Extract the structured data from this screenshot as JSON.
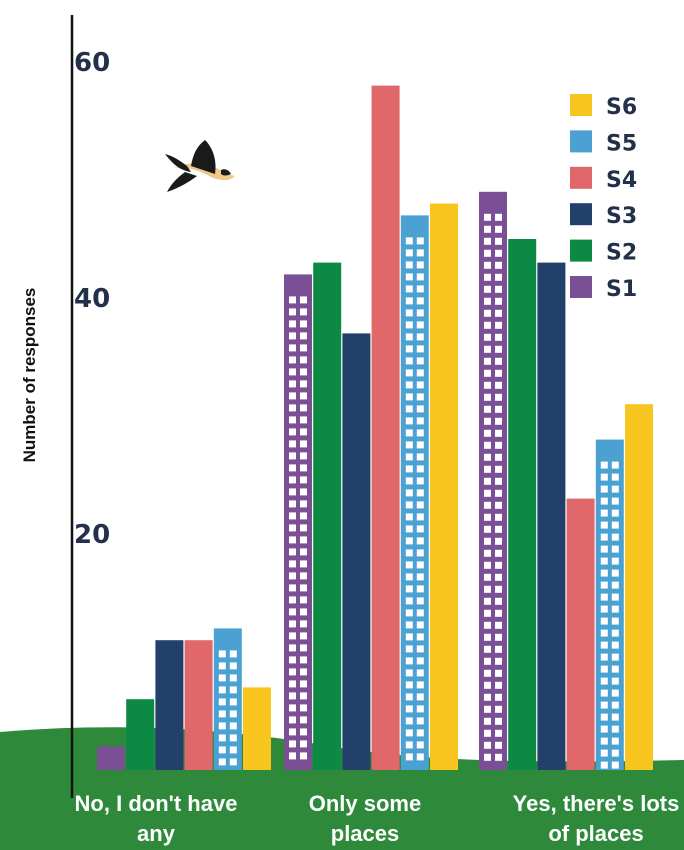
{
  "chart_data": {
    "type": "bar",
    "ylabel": "Number of responses",
    "xlabel": "",
    "ylim": [
      0,
      64
    ],
    "yticks": [
      20,
      40,
      60
    ],
    "grid": false,
    "legend_position": "top-right",
    "categories": [
      [
        "No, I don't have",
        "any"
      ],
      [
        "Only some",
        "places"
      ],
      [
        "Yes, there's lots",
        "of places"
      ]
    ],
    "series": [
      {
        "name": "S1",
        "color": "#7a4f96",
        "pattern": "windows",
        "values": [
          2,
          42,
          49
        ]
      },
      {
        "name": "S2",
        "color": "#0c8a43",
        "pattern": "solid",
        "values": [
          6,
          43,
          45
        ]
      },
      {
        "name": "S3",
        "color": "#23406b",
        "pattern": "solid",
        "values": [
          11,
          37,
          43
        ]
      },
      {
        "name": "S4",
        "color": "#e0686a",
        "pattern": "solid",
        "values": [
          11,
          58,
          23
        ]
      },
      {
        "name": "S5",
        "color": "#4ba1d2",
        "pattern": "windows",
        "values": [
          12,
          47,
          28
        ]
      },
      {
        "name": "S6",
        "color": "#f7c51d",
        "pattern": "solid",
        "values": [
          7,
          48,
          31
        ]
      }
    ],
    "legend_order": [
      "S6",
      "S5",
      "S4",
      "S3",
      "S2",
      "S1"
    ],
    "decorations": [
      "bird-icon",
      "grass-ground"
    ],
    "ground_color": "#2e8a3a"
  }
}
